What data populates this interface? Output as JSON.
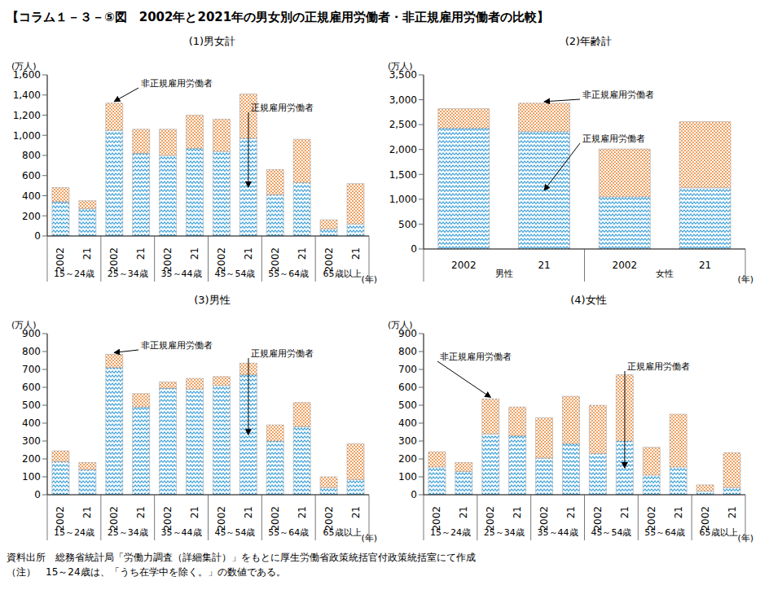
{
  "title": "【コラム１－３－⑤図　2002年と2021年の男女別の正規雇用労働者・非正規雇用労働者の比較】",
  "notes": [
    "資料出所　総務省統計局「労働力調査（詳細集計）」をもとに厚生労働省政策統括官付政策統括室にて作成",
    "（注）　15～24歳は、「うち在学中を除く。」の数値である。"
  ],
  "chart_data": [
    {
      "type": "bar",
      "title": "(1)男女計",
      "y_unit": "(万人)",
      "x_unit": "(年)",
      "categories": [
        "2002",
        "21",
        "2002",
        "21",
        "2002",
        "21",
        "2002",
        "21",
        "2002",
        "21",
        "2002",
        "21"
      ],
      "groups": [
        "15～24歳",
        "25～34歳",
        "35～44歳",
        "45～54歳",
        "55～64歳",
        "65歳以上"
      ],
      "series": [
        {
          "name": "正規雇用労働者",
          "color": "#3a9fd8",
          "values": [
            340,
            270,
            1050,
            820,
            800,
            870,
            840,
            970,
            410,
            530,
            70,
            120
          ]
        },
        {
          "name": "非正規雇用労働者",
          "color": "#f0a060",
          "values": [
            140,
            80,
            270,
            240,
            260,
            330,
            320,
            440,
            250,
            430,
            90,
            400
          ]
        }
      ],
      "ylim": [
        0,
        1600
      ],
      "yticks": [
        0,
        200,
        400,
        600,
        800,
        {
          "value": 1000,
          "label": "1,000"
        },
        {
          "value": 1200,
          "label": "1,200"
        },
        {
          "value": 1400,
          "label": "1,400"
        },
        {
          "value": 1600,
          "label": "1,600"
        }
      ],
      "stacked": true,
      "grid": false,
      "annotations": [
        "非正規雇用労働者",
        "正規雇用労働者"
      ]
    },
    {
      "type": "bar",
      "title": "(2)年齢計",
      "y_unit": "(万人)",
      "x_unit": "(年)",
      "categories": [
        "2002",
        "21",
        "2002",
        "21"
      ],
      "groups": [
        "男性",
        "女性"
      ],
      "series": [
        {
          "name": "正規雇用労働者",
          "color": "#3a9fd8",
          "values": [
            2430,
            2360,
            1050,
            1230
          ]
        },
        {
          "name": "非正規雇用労働者",
          "color": "#f0a060",
          "values": [
            390,
            570,
            960,
            1330
          ]
        }
      ],
      "ylim": [
        0,
        3500
      ],
      "yticks": [
        0,
        500,
        {
          "value": 1000,
          "label": "1,000"
        },
        {
          "value": 1500,
          "label": "1,500"
        },
        {
          "value": 2000,
          "label": "2,000"
        },
        {
          "value": 2500,
          "label": "2,500"
        },
        {
          "value": 3000,
          "label": "3,000"
        },
        {
          "value": 3500,
          "label": "3,500"
        }
      ],
      "stacked": true,
      "grid": false,
      "annotations": [
        "非正規雇用労働者",
        "正規雇用労働者"
      ]
    },
    {
      "type": "bar",
      "title": "(3)男性",
      "y_unit": "(万人)",
      "x_unit": "(年)",
      "categories": [
        "2002",
        "21",
        "2002",
        "21",
        "2002",
        "21",
        "2002",
        "21",
        "2002",
        "21",
        "2002",
        "21"
      ],
      "groups": [
        "15～24歳",
        "25～34歳",
        "35～44歳",
        "45～54歳",
        "55～64歳",
        "65歳以上"
      ],
      "series": [
        {
          "name": "正規雇用労働者",
          "color": "#3a9fd8",
          "values": [
            185,
            140,
            710,
            490,
            595,
            590,
            610,
            670,
            300,
            380,
            40,
            85
          ]
        },
        {
          "name": "非正規雇用労働者",
          "color": "#f0a060",
          "values": [
            60,
            40,
            75,
            75,
            35,
            60,
            50,
            65,
            90,
            135,
            60,
            200
          ]
        }
      ],
      "ylim": [
        0,
        900
      ],
      "yticks": [
        0,
        100,
        200,
        300,
        400,
        500,
        600,
        700,
        800,
        900
      ],
      "stacked": true,
      "grid": false,
      "annotations": [
        "非正規雇用労働者",
        "正規雇用労働者"
      ]
    },
    {
      "type": "bar",
      "title": "(4)女性",
      "y_unit": "(万人)",
      "x_unit": "(年)",
      "categories": [
        "2002",
        "21",
        "2002",
        "21",
        "2002",
        "21",
        "2002",
        "21",
        "2002",
        "21",
        "2002",
        "21"
      ],
      "groups": [
        "15～24歳",
        "25～34歳",
        "35～44歳",
        "45～54歳",
        "55～64歳",
        "65歳以上"
      ],
      "series": [
        {
          "name": "正規雇用労働者",
          "color": "#3a9fd8",
          "values": [
            155,
            130,
            340,
            330,
            205,
            285,
            230,
            300,
            110,
            155,
            20,
            40
          ]
        },
        {
          "name": "非正規雇用労働者",
          "color": "#f0a060",
          "values": [
            85,
            50,
            195,
            160,
            225,
            265,
            270,
            370,
            155,
            295,
            35,
            195
          ]
        }
      ],
      "ylim": [
        0,
        900
      ],
      "yticks": [
        0,
        100,
        200,
        300,
        400,
        500,
        600,
        700,
        800,
        900
      ],
      "stacked": true,
      "grid": false,
      "annotations": [
        "非正規雇用労働者",
        "正規雇用労働者"
      ]
    }
  ]
}
